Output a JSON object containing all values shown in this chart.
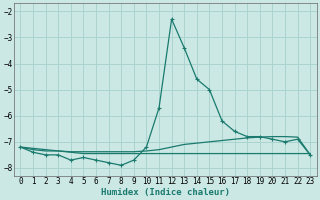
{
  "xlabel": "Humidex (Indice chaleur)",
  "ylabel": "",
  "background_color": "#cbe8e4",
  "grid_color": "#aad4d0",
  "line_color": "#1a7a6e",
  "xlim": [
    -0.5,
    23.5
  ],
  "ylim": [
    -8.3,
    -1.7
  ],
  "xticks": [
    0,
    1,
    2,
    3,
    4,
    5,
    6,
    7,
    8,
    9,
    10,
    11,
    12,
    13,
    14,
    15,
    16,
    17,
    18,
    19,
    20,
    21,
    22,
    23
  ],
  "yticks": [
    -8,
    -7,
    -6,
    -5,
    -4,
    -3,
    -2
  ],
  "series_main": [
    -7.2,
    -7.4,
    -7.5,
    -7.5,
    -7.7,
    -7.6,
    -7.7,
    -7.8,
    -7.9,
    -7.7,
    -7.2,
    -5.7,
    -2.3,
    -3.4,
    -4.6,
    -5.0,
    -6.2,
    -6.6,
    -6.8,
    -6.8,
    -6.9,
    -7.0,
    -6.9,
    -7.5
  ],
  "series_flat": [
    -7.2,
    -7.25,
    -7.3,
    -7.35,
    -7.4,
    -7.45,
    -7.45,
    -7.45,
    -7.45,
    -7.45,
    -7.45,
    -7.45,
    -7.45,
    -7.45,
    -7.45,
    -7.45,
    -7.45,
    -7.45,
    -7.45,
    -7.45,
    -7.45,
    -7.45,
    -7.45,
    -7.45
  ],
  "series_rising": [
    -7.2,
    -7.3,
    -7.35,
    -7.35,
    -7.38,
    -7.38,
    -7.38,
    -7.38,
    -7.38,
    -7.38,
    -7.35,
    -7.3,
    -7.2,
    -7.1,
    -7.05,
    -7.0,
    -6.95,
    -6.9,
    -6.85,
    -6.82,
    -6.8,
    -6.8,
    -6.82,
    -7.5
  ]
}
